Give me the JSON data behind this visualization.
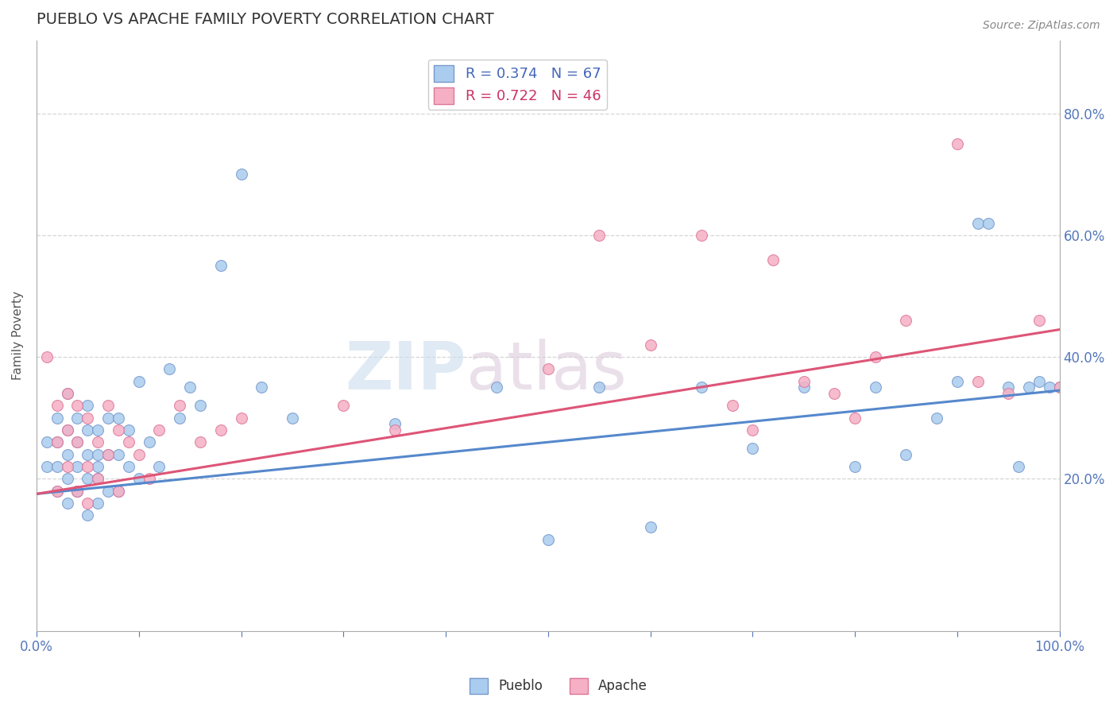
{
  "title": "PUEBLO VS APACHE FAMILY POVERTY CORRELATION CHART",
  "source_text": "Source: ZipAtlas.com",
  "ylabel": "Family Poverty",
  "watermark_zip": "ZIP",
  "watermark_atlas": "atlas",
  "xlim": [
    0.0,
    1.0
  ],
  "ylim": [
    -0.05,
    0.92
  ],
  "ytick_positions": [
    0.2,
    0.4,
    0.6,
    0.8
  ],
  "pueblo_color": "#aaccee",
  "pueblo_edge": "#7799cc",
  "apache_color": "#f5b0c5",
  "apache_edge": "#dd7799",
  "trend_pueblo_color": "#5588cc",
  "trend_apache_color": "#dd5577",
  "pueblo_R": 0.374,
  "pueblo_N": 67,
  "apache_R": 0.722,
  "apache_N": 46,
  "pueblo_trend_start_y": 0.175,
  "pueblo_trend_end_y": 0.345,
  "apache_trend_start_y": 0.175,
  "apache_trend_end_y": 0.445,
  "pueblo_x": [
    0.01,
    0.01,
    0.02,
    0.02,
    0.02,
    0.02,
    0.03,
    0.03,
    0.03,
    0.03,
    0.03,
    0.04,
    0.04,
    0.04,
    0.04,
    0.04,
    0.05,
    0.05,
    0.05,
    0.05,
    0.05,
    0.06,
    0.06,
    0.06,
    0.06,
    0.06,
    0.07,
    0.07,
    0.07,
    0.08,
    0.08,
    0.08,
    0.09,
    0.09,
    0.1,
    0.1,
    0.11,
    0.12,
    0.13,
    0.14,
    0.15,
    0.16,
    0.18,
    0.2,
    0.22,
    0.25,
    0.35,
    0.45,
    0.5,
    0.55,
    0.6,
    0.65,
    0.7,
    0.75,
    0.8,
    0.82,
    0.85,
    0.88,
    0.9,
    0.92,
    0.93,
    0.95,
    0.96,
    0.97,
    0.98,
    0.99,
    1.0
  ],
  "pueblo_y": [
    0.22,
    0.26,
    0.18,
    0.22,
    0.26,
    0.3,
    0.16,
    0.2,
    0.24,
    0.28,
    0.34,
    0.18,
    0.22,
    0.26,
    0.3,
    0.18,
    0.14,
    0.2,
    0.24,
    0.28,
    0.32,
    0.16,
    0.2,
    0.24,
    0.28,
    0.22,
    0.18,
    0.24,
    0.3,
    0.18,
    0.24,
    0.3,
    0.22,
    0.28,
    0.2,
    0.36,
    0.26,
    0.22,
    0.38,
    0.3,
    0.35,
    0.32,
    0.55,
    0.7,
    0.35,
    0.3,
    0.29,
    0.35,
    0.1,
    0.35,
    0.12,
    0.35,
    0.25,
    0.35,
    0.22,
    0.35,
    0.24,
    0.3,
    0.36,
    0.62,
    0.62,
    0.35,
    0.22,
    0.35,
    0.36,
    0.35,
    0.35
  ],
  "apache_x": [
    0.01,
    0.02,
    0.02,
    0.02,
    0.03,
    0.03,
    0.03,
    0.04,
    0.04,
    0.04,
    0.05,
    0.05,
    0.05,
    0.06,
    0.06,
    0.07,
    0.07,
    0.08,
    0.08,
    0.09,
    0.1,
    0.11,
    0.12,
    0.14,
    0.16,
    0.18,
    0.2,
    0.3,
    0.35,
    0.5,
    0.55,
    0.6,
    0.65,
    0.68,
    0.7,
    0.72,
    0.75,
    0.78,
    0.8,
    0.82,
    0.85,
    0.9,
    0.92,
    0.95,
    0.98,
    1.0
  ],
  "apache_y": [
    0.4,
    0.18,
    0.26,
    0.32,
    0.22,
    0.28,
    0.34,
    0.18,
    0.26,
    0.32,
    0.16,
    0.22,
    0.3,
    0.2,
    0.26,
    0.24,
    0.32,
    0.18,
    0.28,
    0.26,
    0.24,
    0.2,
    0.28,
    0.32,
    0.26,
    0.28,
    0.3,
    0.32,
    0.28,
    0.38,
    0.6,
    0.42,
    0.6,
    0.32,
    0.28,
    0.56,
    0.36,
    0.34,
    0.3,
    0.4,
    0.46,
    0.75,
    0.36,
    0.34,
    0.46,
    0.35
  ],
  "grid_color": "#cccccc",
  "bg_color": "#ffffff",
  "title_color": "#333333",
  "title_fontsize": 14,
  "legend_label_color_pueblo": "#4466bb",
  "legend_label_color_apache": "#cc3366",
  "legend_n_color": "#cc3366"
}
